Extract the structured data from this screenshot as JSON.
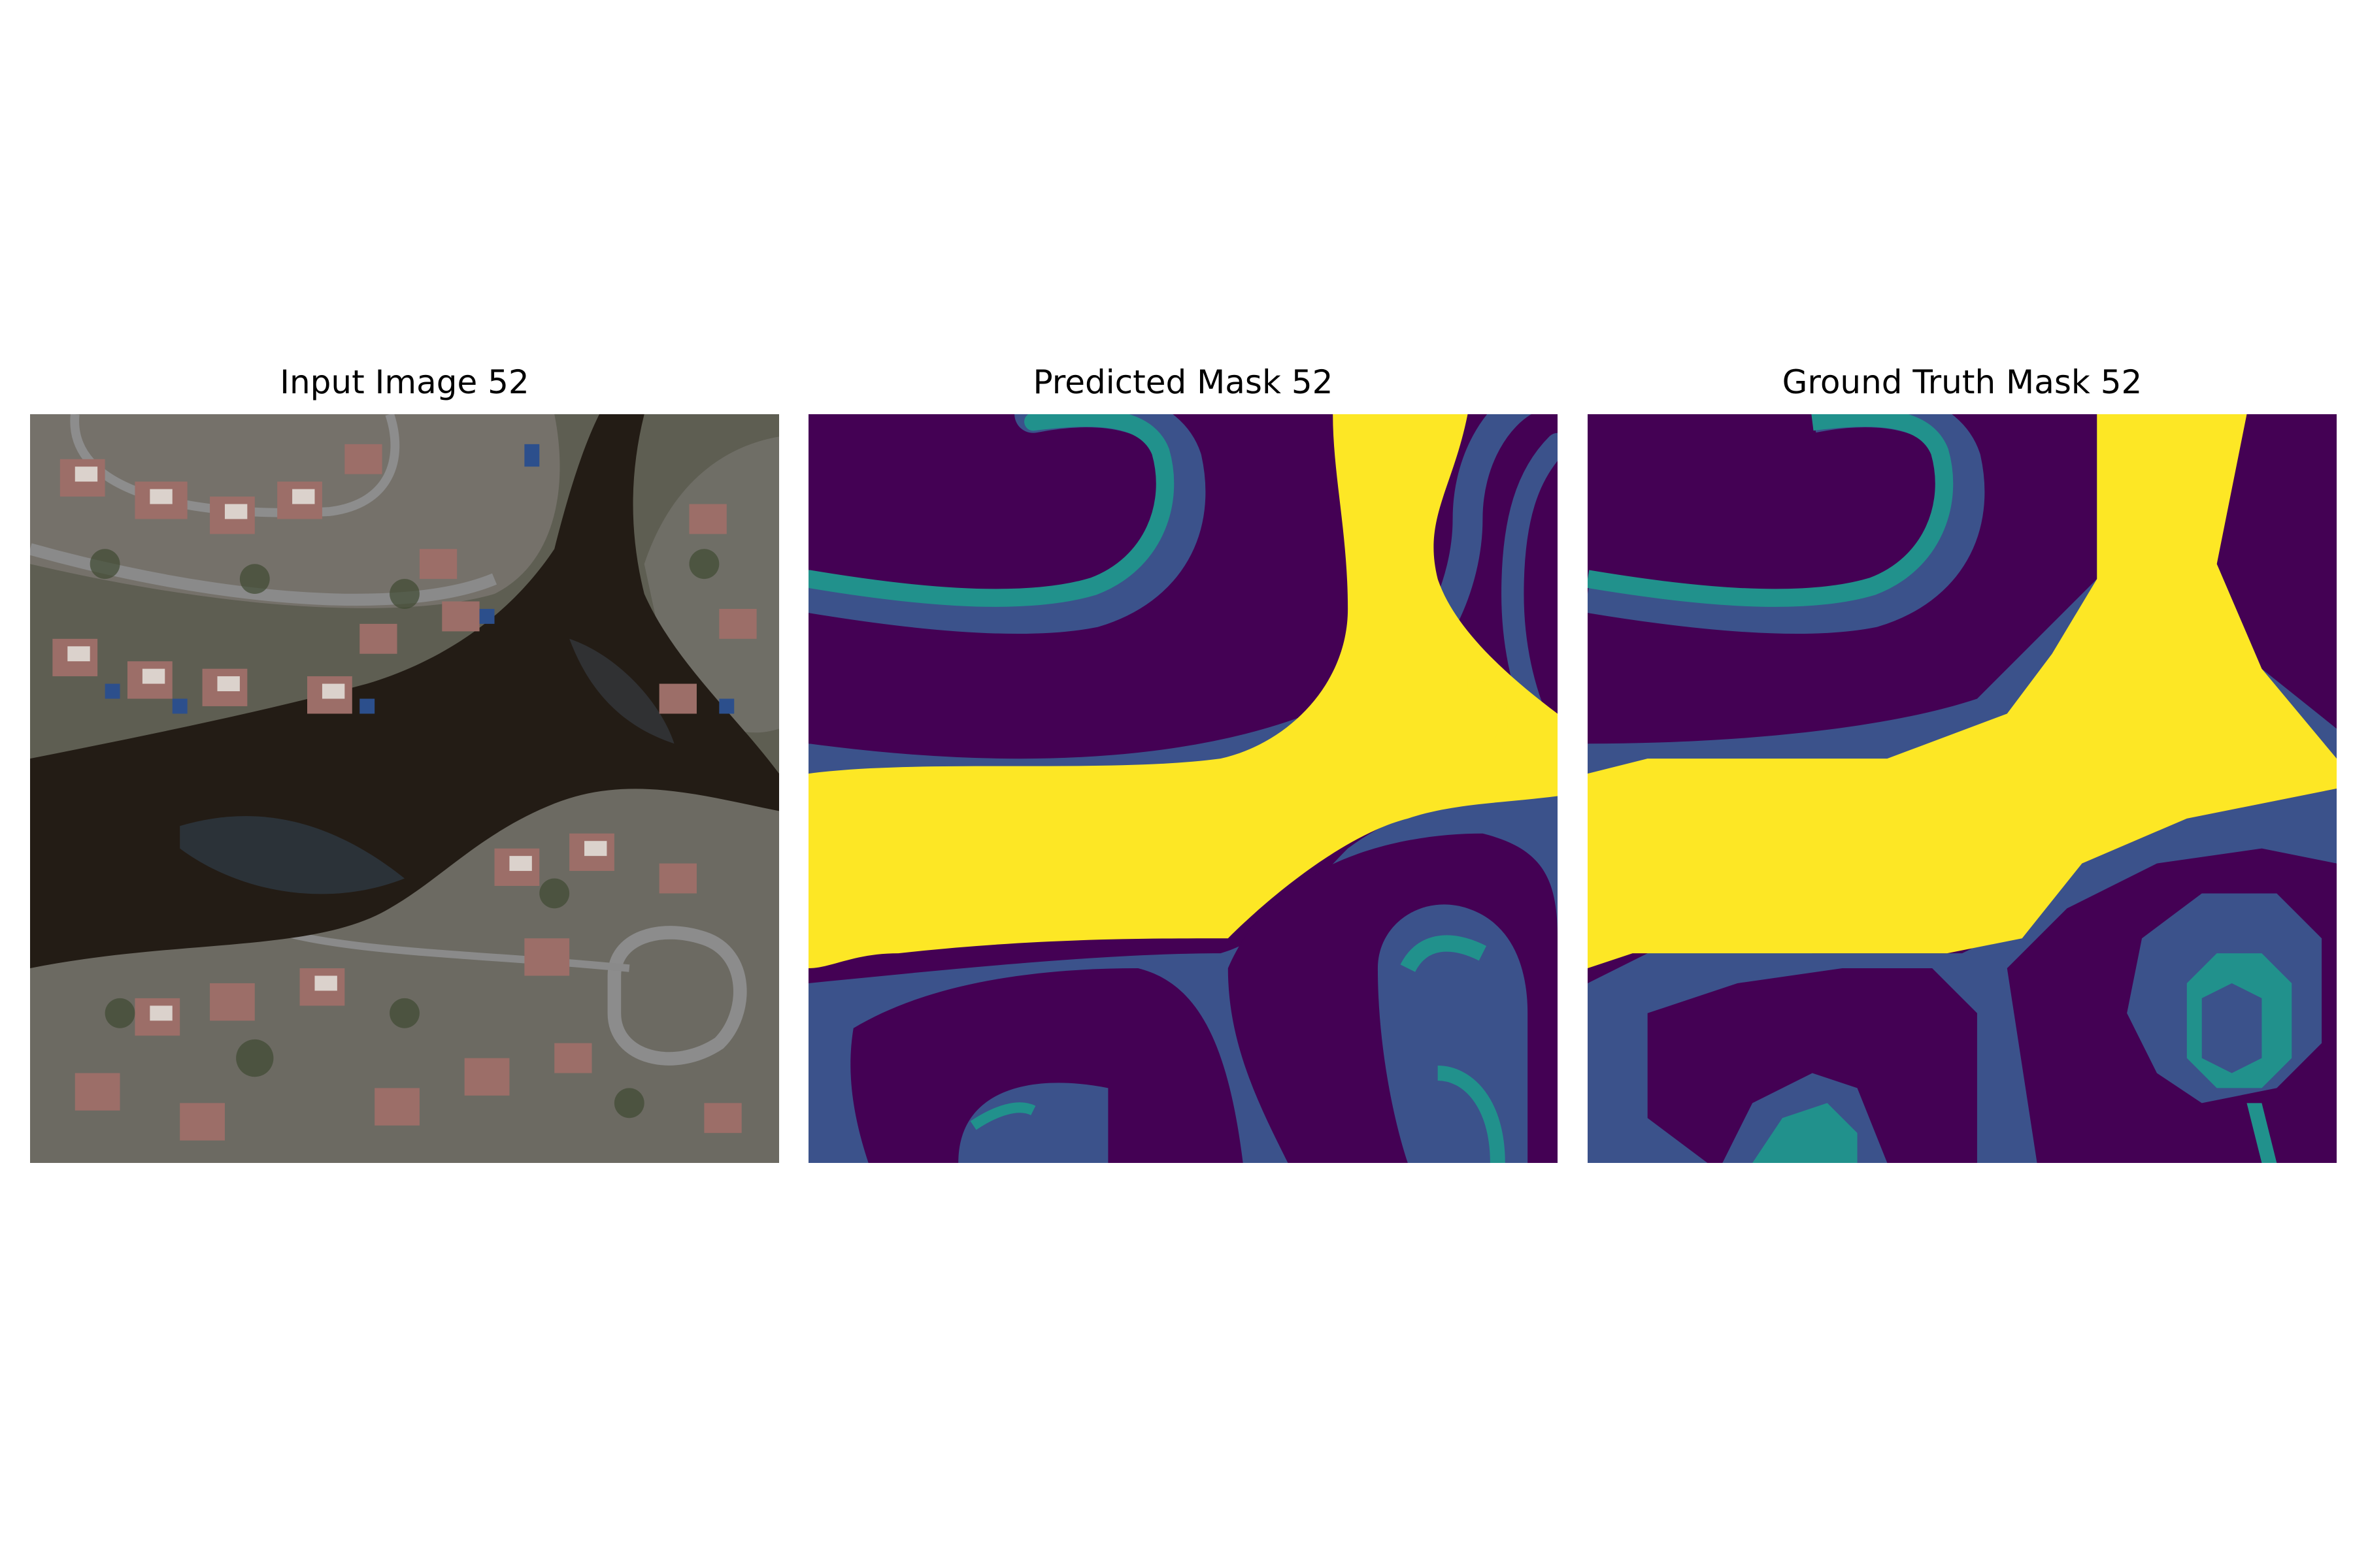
{
  "figure": {
    "panels": [
      {
        "title": "Input Image 52"
      },
      {
        "title": "Predicted Mask 52"
      },
      {
        "title": "Ground Truth Mask 52"
      }
    ]
  },
  "colors": {
    "background_class": "#440154",
    "boundary_class": "#3b528b",
    "edge_class": "#21918c",
    "water_class": "#fde725"
  }
}
